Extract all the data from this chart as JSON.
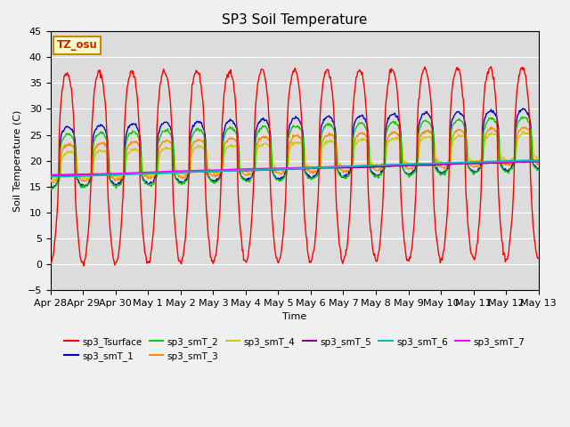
{
  "title": "SP3 Soil Temperature",
  "xlabel": "Time",
  "ylabel": "Soil Temperature (C)",
  "ylim": [
    -5,
    45
  ],
  "tz_label": "TZ_osu",
  "series_colors": {
    "sp3_Tsurface": "#ff0000",
    "sp3_smT_1": "#0000cc",
    "sp3_smT_2": "#00cc00",
    "sp3_smT_3": "#ff8800",
    "sp3_smT_4": "#cccc00",
    "sp3_smT_5": "#880088",
    "sp3_smT_6": "#00bbbb",
    "sp3_smT_7": "#ff00ff"
  },
  "x_tick_labels": [
    "Apr 28",
    "Apr 29",
    "Apr 30",
    "May 1",
    "May 2",
    "May 3",
    "May 4",
    "May 5",
    "May 6",
    "May 7",
    "May 8",
    "May 9",
    "May 10",
    "May 11",
    "May 12",
    "May 13"
  ],
  "fig_bg_color": "#f0f0f0",
  "plot_bg_color": "#dcdcdc"
}
